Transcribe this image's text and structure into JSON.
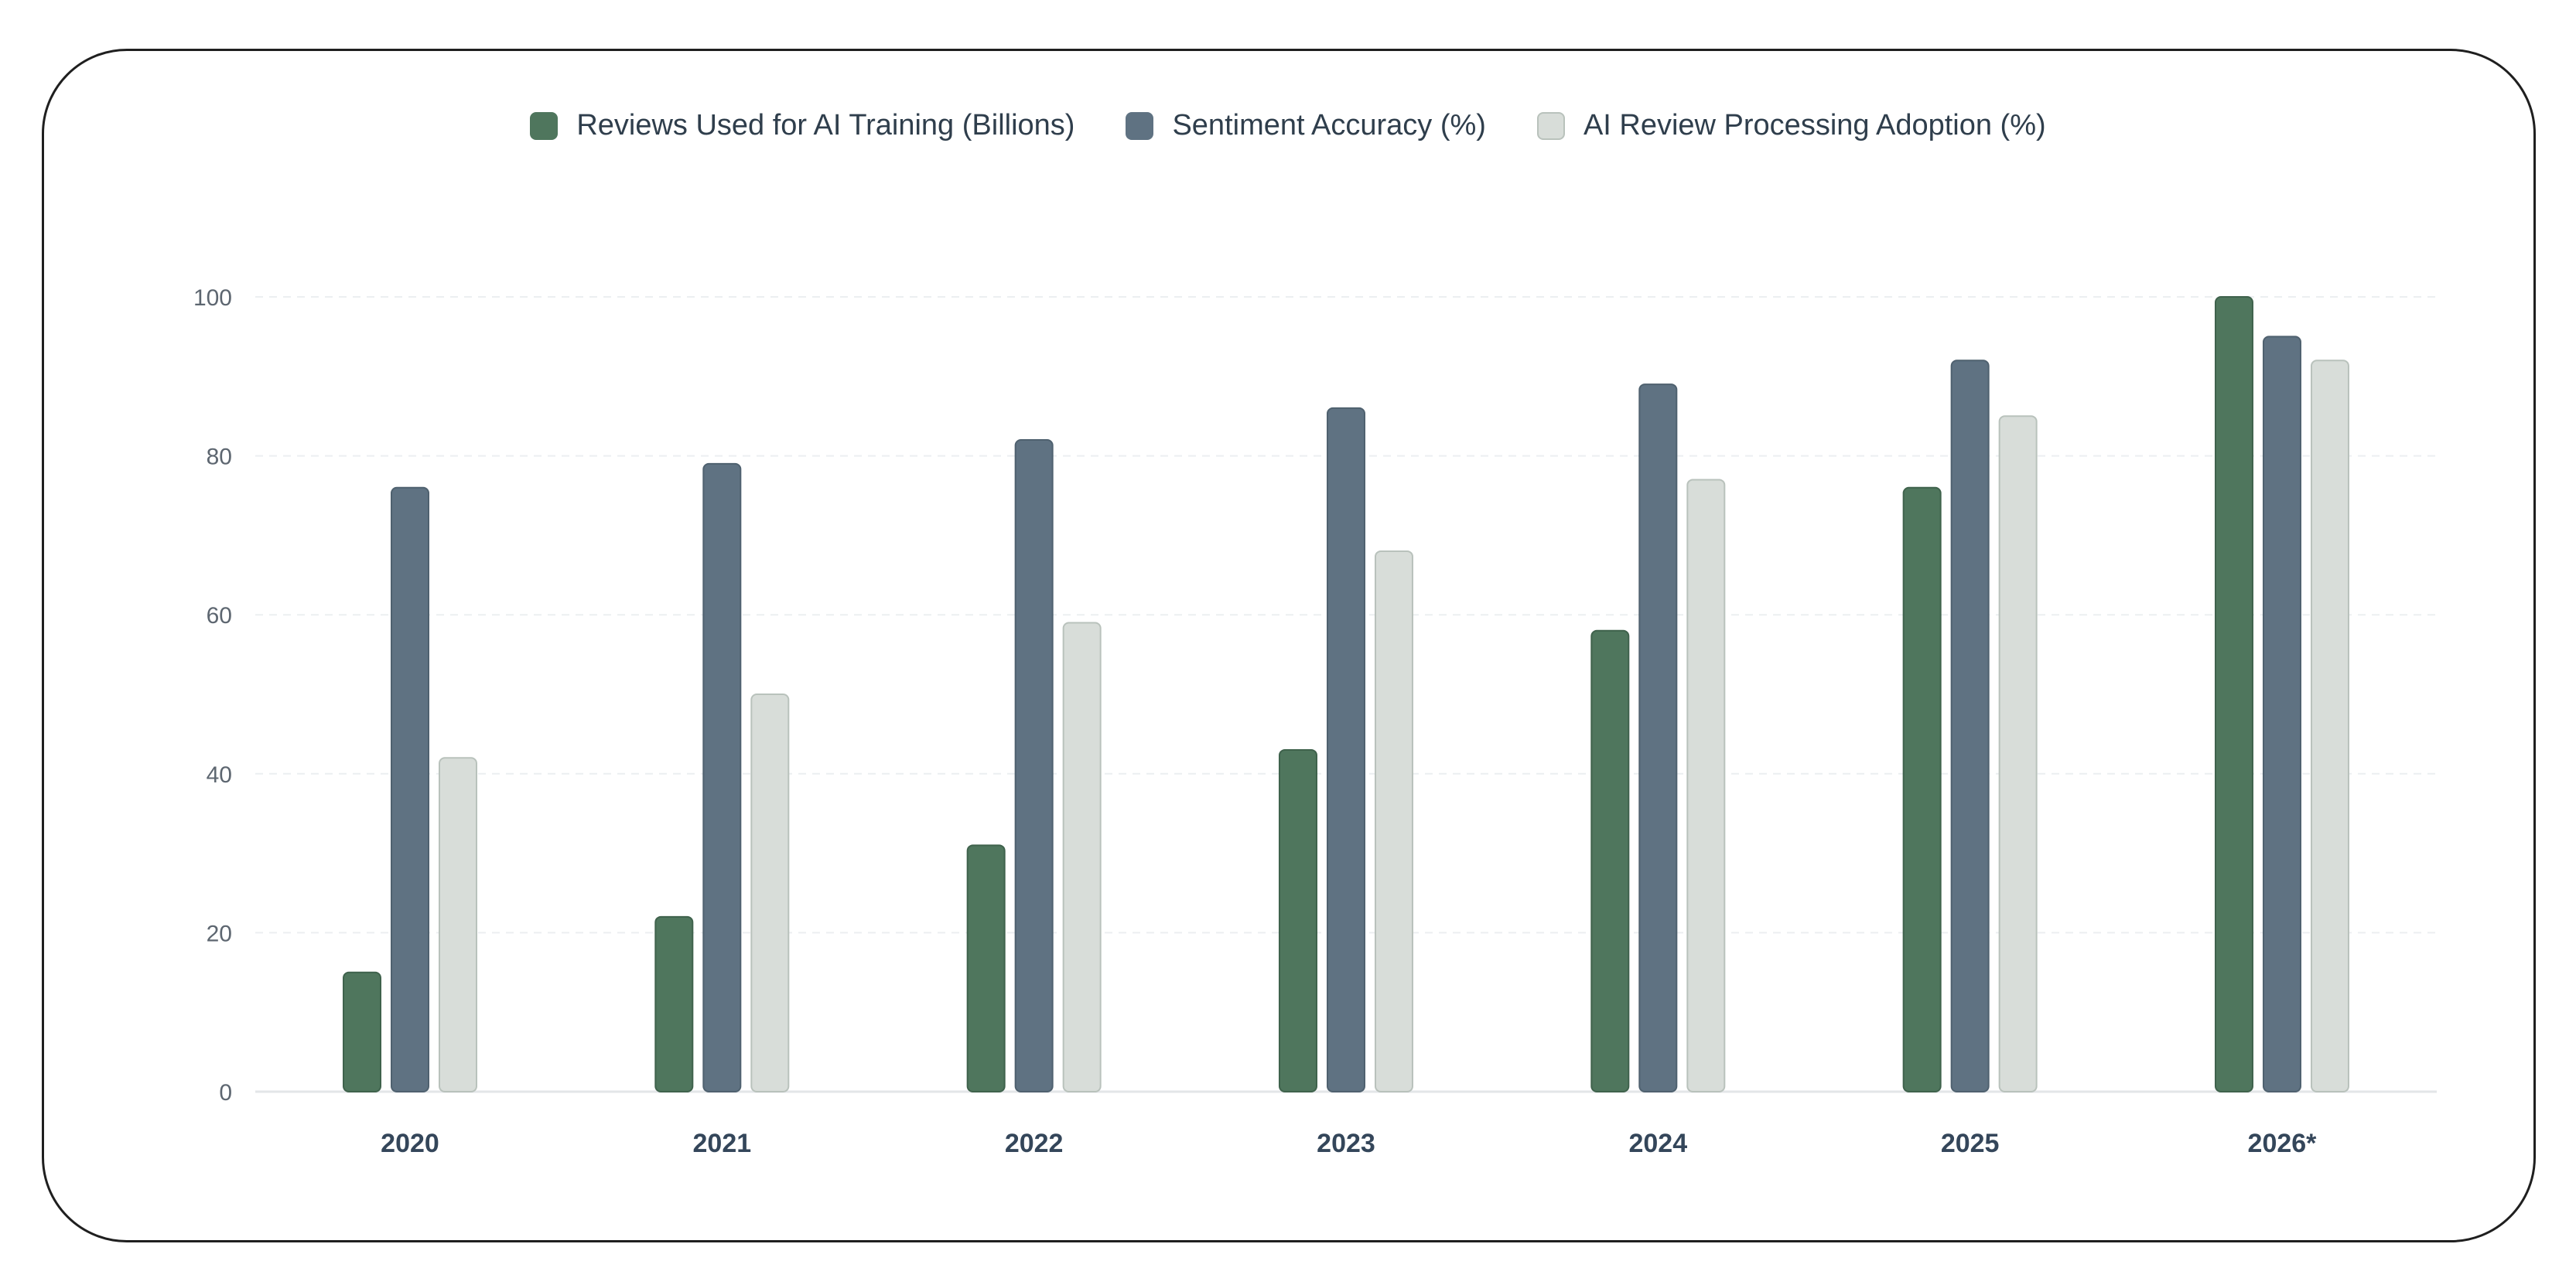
{
  "chart_data": {
    "type": "bar",
    "categories": [
      "2020",
      "2021",
      "2022",
      "2023",
      "2024",
      "2025",
      "2026*"
    ],
    "series": [
      {
        "name": "Reviews Used for AI Training (Billions)",
        "color": "#4f765d",
        "values": [
          15,
          22,
          31,
          43,
          58,
          76,
          100
        ]
      },
      {
        "name": "Sentiment Accuracy (%)",
        "color": "#5f7282",
        "values": [
          76,
          79,
          82,
          86,
          89,
          92,
          95
        ]
      },
      {
        "name": "AI Review Processing Adoption (%)",
        "color": "#d8ddd9",
        "values": [
          42,
          50,
          59,
          68,
          77,
          85,
          92
        ]
      }
    ],
    "yticks": [
      0,
      20,
      40,
      60,
      80,
      100
    ],
    "ylim": [
      0,
      100
    ],
    "grid": true,
    "legend": "top-center",
    "title": "",
    "xlabel": "",
    "ylabel": ""
  }
}
